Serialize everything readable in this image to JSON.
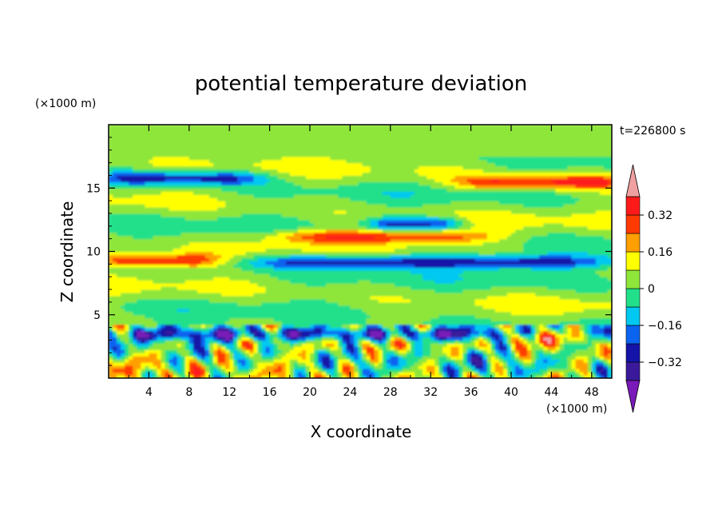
{
  "chart_data": {
    "type": "heatmap",
    "title": "potential temperature deviation",
    "xlabel": "X coordinate",
    "ylabel": "Z coordinate",
    "x_unit": "(×1000 m)",
    "y_unit": "(×1000 m)",
    "time_label": "t=226800 s",
    "xlim": [
      0,
      50
    ],
    "ylim": [
      0,
      20
    ],
    "xticks": [
      4,
      8,
      12,
      16,
      20,
      24,
      28,
      32,
      36,
      40,
      44,
      48
    ],
    "yticks": [
      5,
      10,
      15
    ],
    "colorbar": {
      "levels": [
        -0.4,
        -0.32,
        -0.24,
        -0.16,
        -0.08,
        0,
        0.08,
        0.16,
        0.24,
        0.32,
        0.4
      ],
      "labeled_ticks": [
        -0.32,
        -0.16,
        0,
        0.16,
        0.32
      ],
      "tick_labels": [
        "0.32",
        "0.16",
        "0",
        "−0.16",
        "−0.32"
      ],
      "colors": [
        "#7a1ab8",
        "#3a1a9a",
        "#1414a8",
        "#0a64f0",
        "#00c8f0",
        "#22e08a",
        "#8ee63a",
        "#ffff00",
        "#ffa000",
        "#ff3a00",
        "#ff1a1a",
        "#f0a0a0"
      ],
      "extend": "both"
    },
    "features": [
      {
        "name": "upper warm band",
        "x_range": [
          36,
          50
        ],
        "z": 15.5,
        "value": 0.3
      },
      {
        "name": "upper cold band",
        "x_range": [
          1,
          14
        ],
        "z": 15.8,
        "value": -0.3
      },
      {
        "name": "mid warm lens",
        "x_range": [
          18,
          36
        ],
        "z": 11.2,
        "value": 0.3
      },
      {
        "name": "mid cold lens",
        "x_range": [
          27,
          34
        ],
        "z": 12.2,
        "value": -0.3
      },
      {
        "name": "inversion cold layer",
        "x_range": [
          16,
          48
        ],
        "z": 9.2,
        "value": -0.35
      },
      {
        "name": "warm layer",
        "x_range": [
          0,
          10
        ],
        "z": 9.3,
        "value": 0.32
      },
      {
        "name": "boundary layer cold band",
        "x_range": [
          0,
          50
        ],
        "z": 3.5,
        "value": -0.35
      },
      {
        "name": "boundary layer warm plume",
        "x_range": [
          40,
          48
        ],
        "z": 3.4,
        "value": 0.4
      }
    ]
  }
}
